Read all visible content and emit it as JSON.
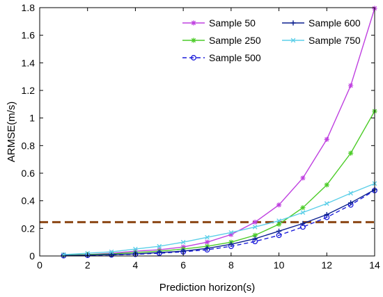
{
  "chart_data": {
    "type": "line",
    "xlabel": "Prediction horizon(s)",
    "ylabel": "ARMSE(m/s)",
    "xlim": [
      0,
      14
    ],
    "ylim": [
      0,
      1.8
    ],
    "xticks": [
      "0",
      "2",
      "4",
      "6",
      "8",
      "10",
      "12",
      "14"
    ],
    "yticks": [
      "0",
      "0.2",
      "0.4",
      "0.6",
      "0.8",
      "1",
      "1.2",
      "1.4",
      "1.6",
      "1.8"
    ],
    "grid": false,
    "legend_position": "top-right",
    "x": [
      1,
      2,
      3,
      4,
      5,
      6,
      7,
      8,
      9,
      10,
      11,
      12,
      13,
      14
    ],
    "series": [
      {
        "name": "Sample 50",
        "color": "#bf40e0",
        "marker": "star",
        "dash": "solid",
        "values": [
          0.005,
          0.01,
          0.02,
          0.035,
          0.045,
          0.065,
          0.1,
          0.155,
          0.245,
          0.37,
          0.565,
          0.845,
          1.235,
          1.795
        ]
      },
      {
        "name": "Sample 250",
        "color": "#4ccc28",
        "marker": "star",
        "dash": "solid",
        "values": [
          0.005,
          0.01,
          0.015,
          0.025,
          0.035,
          0.05,
          0.07,
          0.1,
          0.15,
          0.23,
          0.35,
          0.515,
          0.745,
          1.05
        ]
      },
      {
        "name": "Sample 500",
        "color": "#1a1adb",
        "marker": "circle",
        "dash": "dashed",
        "values": [
          0.002,
          0.005,
          0.008,
          0.012,
          0.02,
          0.03,
          0.045,
          0.07,
          0.105,
          0.15,
          0.21,
          0.28,
          0.37,
          0.475
        ]
      },
      {
        "name": "Sample 600",
        "color": "#0a1f8f",
        "marker": "plus",
        "dash": "solid",
        "values": [
          0.003,
          0.006,
          0.01,
          0.015,
          0.025,
          0.035,
          0.055,
          0.085,
          0.125,
          0.18,
          0.235,
          0.3,
          0.385,
          0.48
        ]
      },
      {
        "name": "Sample 750",
        "color": "#5ccfe8",
        "marker": "x",
        "dash": "solid",
        "values": [
          0.01,
          0.02,
          0.03,
          0.05,
          0.07,
          0.1,
          0.135,
          0.17,
          0.21,
          0.255,
          0.315,
          0.38,
          0.455,
          0.525
        ]
      }
    ],
    "reference_line": {
      "y": 0.245,
      "color": "#8b4513",
      "dash": "dashed"
    }
  }
}
